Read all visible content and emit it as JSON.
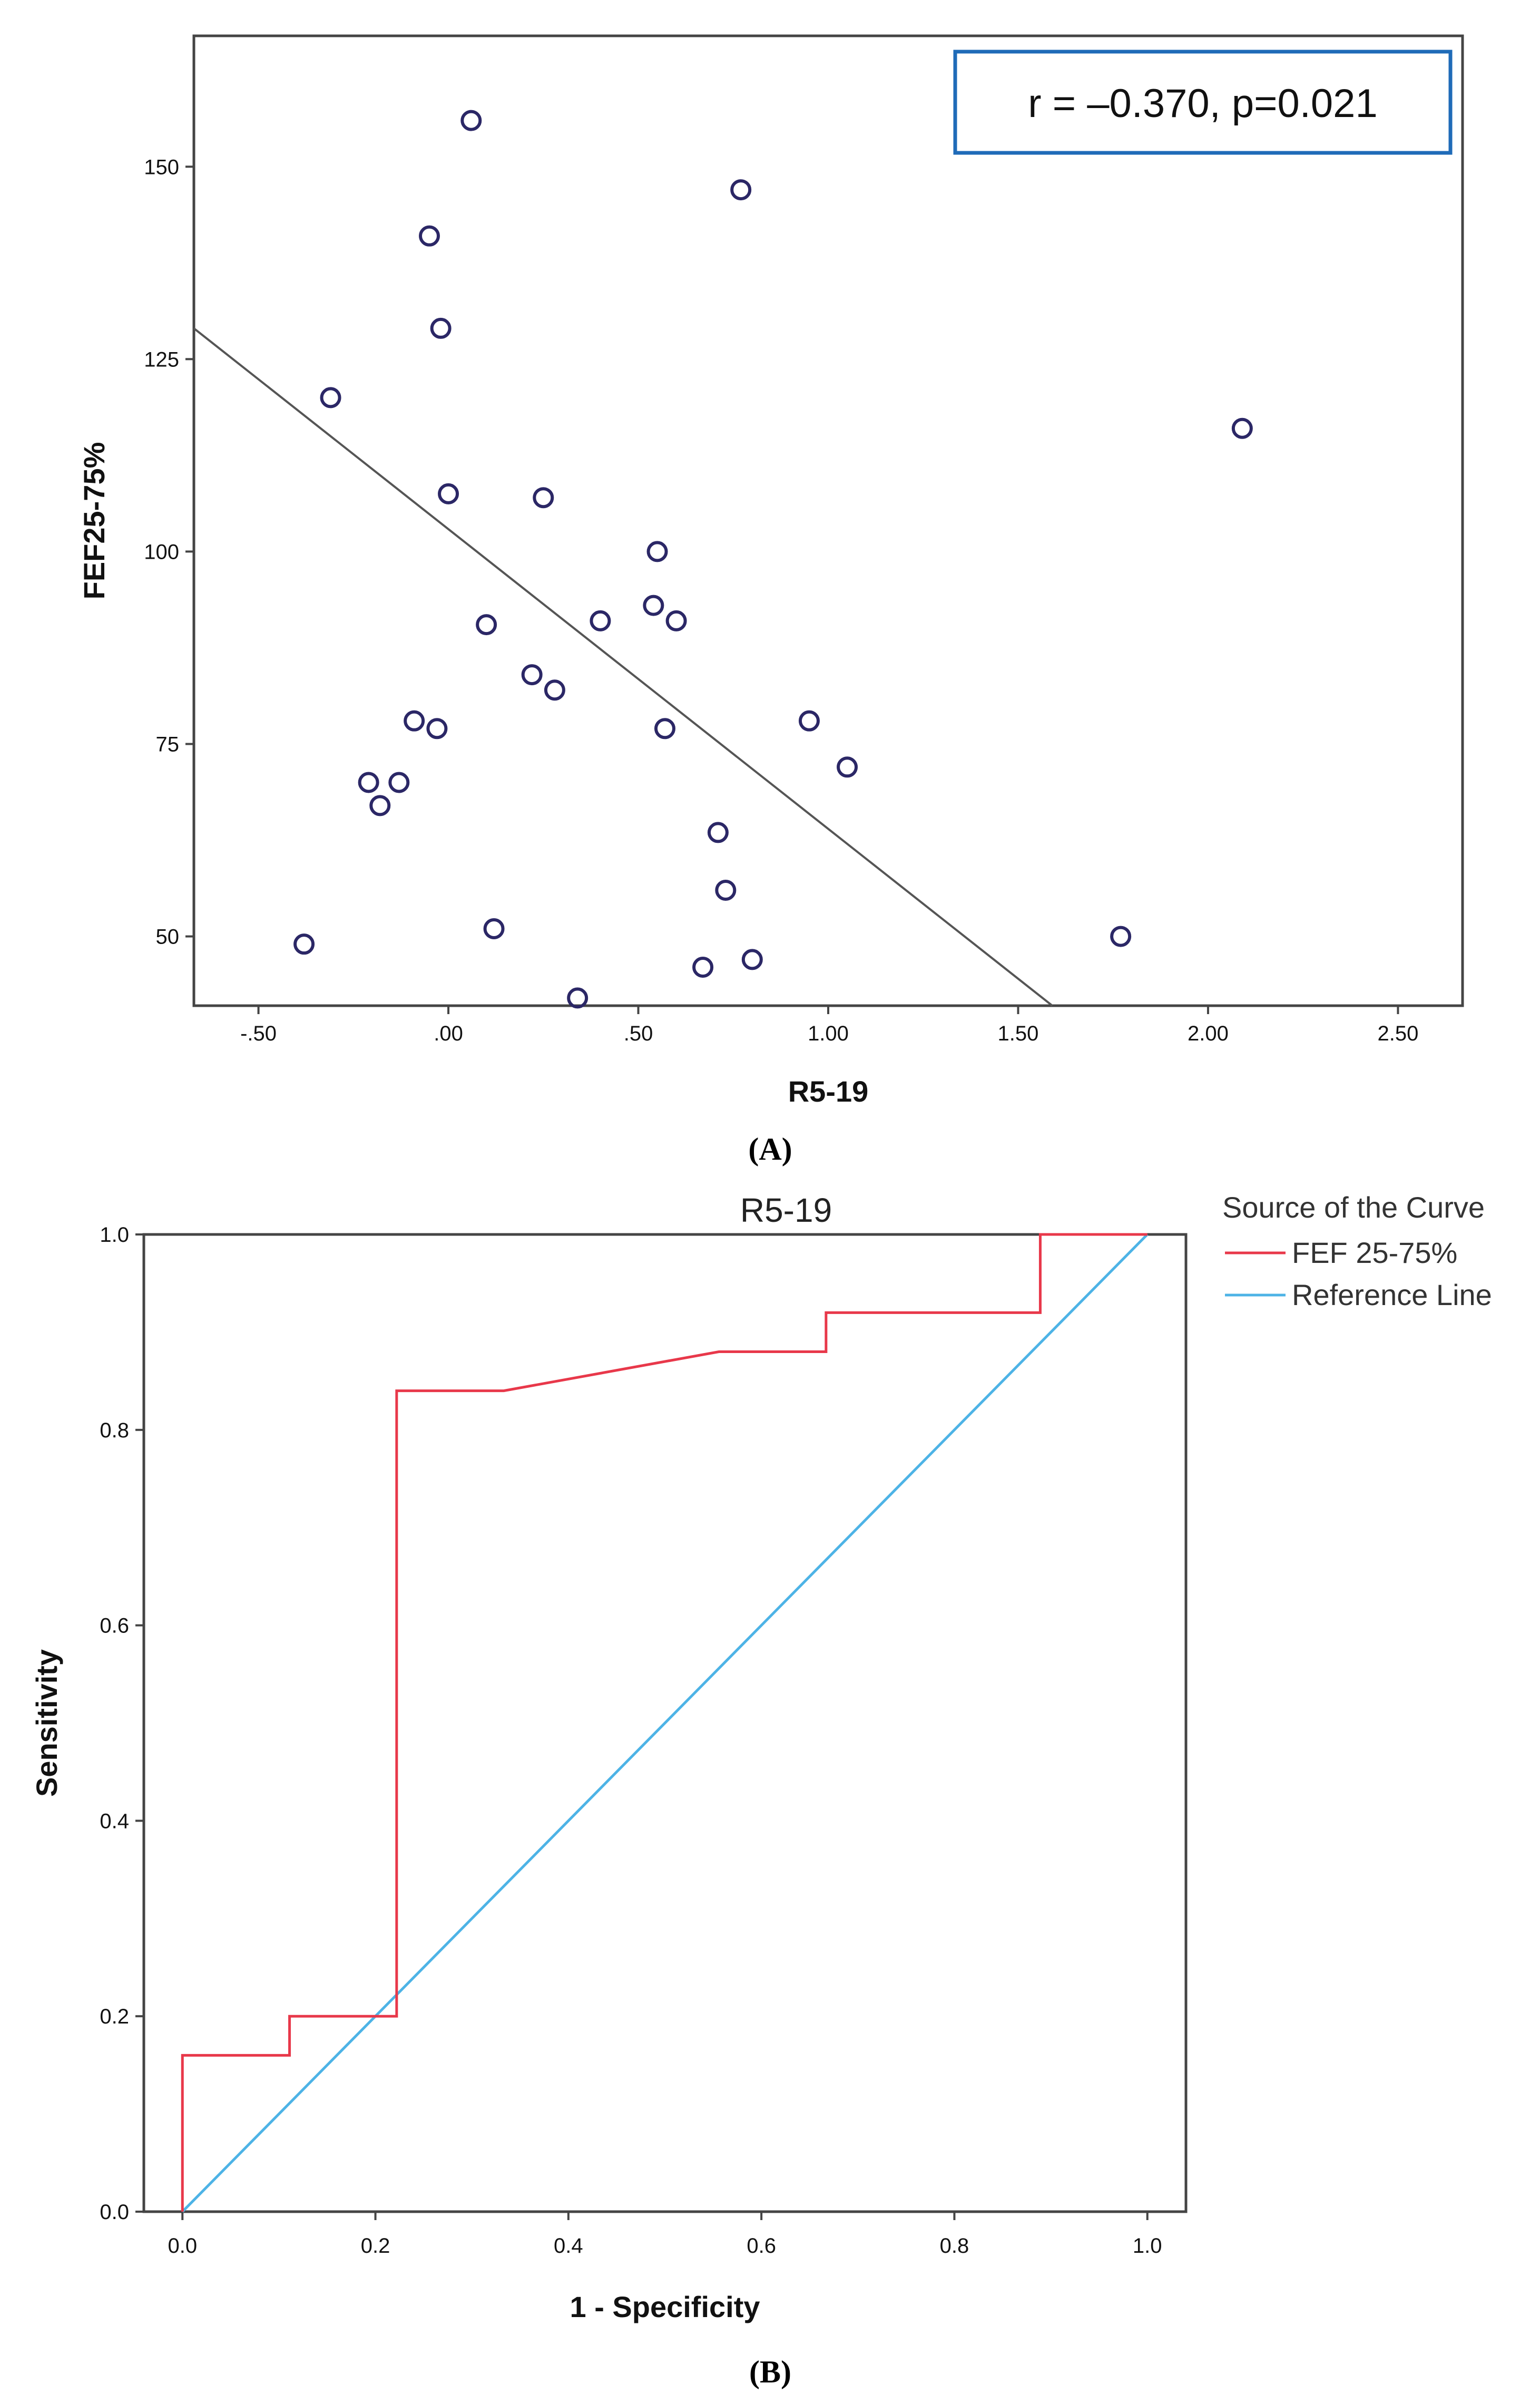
{
  "colors": {
    "frame": "#444444",
    "point_stroke": "#2b2766",
    "fit_line": "#555555",
    "annotation_border": "#1f6bb8",
    "roc_curve": "#e8384a",
    "reference_line": "#4db3e6"
  },
  "chart_data": [
    {
      "type": "scatter",
      "panel_label": "(A)",
      "xlabel": "R5-19",
      "ylabel": "FEF25-75%",
      "xlim": [
        -0.67,
        2.67
      ],
      "ylim": [
        41,
        167
      ],
      "x_ticks": [
        -0.5,
        0.0,
        0.5,
        1.0,
        1.5,
        2.0,
        2.5
      ],
      "x_tick_labels": [
        "-.50",
        ".00",
        ".50",
        "1.00",
        "1.50",
        "2.00",
        "2.50"
      ],
      "y_ticks": [
        50,
        75,
        100,
        125,
        150
      ],
      "y_tick_labels": [
        "50",
        "75",
        "100",
        "125",
        "150"
      ],
      "annotation": "r  =  –0.370, p=0.021",
      "points": [
        {
          "x": 0.06,
          "y": 156
        },
        {
          "x": 0.77,
          "y": 147
        },
        {
          "x": -0.05,
          "y": 141
        },
        {
          "x": -0.02,
          "y": 129
        },
        {
          "x": -0.31,
          "y": 120
        },
        {
          "x": 2.09,
          "y": 116
        },
        {
          "x": 0.0,
          "y": 107.5
        },
        {
          "x": 0.25,
          "y": 107
        },
        {
          "x": 0.55,
          "y": 100
        },
        {
          "x": 0.54,
          "y": 93
        },
        {
          "x": 0.4,
          "y": 91
        },
        {
          "x": 0.6,
          "y": 91
        },
        {
          "x": 0.1,
          "y": 90.5
        },
        {
          "x": 0.22,
          "y": 84
        },
        {
          "x": 0.28,
          "y": 82
        },
        {
          "x": -0.09,
          "y": 78
        },
        {
          "x": 0.95,
          "y": 78
        },
        {
          "x": -0.03,
          "y": 77
        },
        {
          "x": 0.57,
          "y": 77
        },
        {
          "x": 1.05,
          "y": 72
        },
        {
          "x": -0.21,
          "y": 70
        },
        {
          "x": -0.13,
          "y": 70
        },
        {
          "x": -0.18,
          "y": 67
        },
        {
          "x": 0.71,
          "y": 63.5
        },
        {
          "x": 0.73,
          "y": 56
        },
        {
          "x": 0.12,
          "y": 51
        },
        {
          "x": 1.77,
          "y": 50
        },
        {
          "x": -0.38,
          "y": 49
        },
        {
          "x": 0.8,
          "y": 47
        },
        {
          "x": 0.67,
          "y": 46
        },
        {
          "x": 0.34,
          "y": 42
        }
      ],
      "fit_line": {
        "x": [
          -0.67,
          1.59
        ],
        "y": [
          129,
          41
        ]
      }
    },
    {
      "type": "line",
      "panel_label": "(B)",
      "title": "R5-19",
      "xlabel": "1 - Specificity",
      "ylabel": "Sensitivity",
      "xlim": [
        -0.04,
        1.04
      ],
      "ylim": [
        0.0,
        1.0
      ],
      "x_ticks": [
        0.0,
        0.2,
        0.4,
        0.6,
        0.8,
        1.0
      ],
      "x_tick_labels": [
        "0.0",
        "0.2",
        "0.4",
        "0.6",
        "0.8",
        "1.0"
      ],
      "y_ticks": [
        0.0,
        0.2,
        0.4,
        0.6,
        0.8,
        1.0
      ],
      "y_tick_labels": [
        "0.0",
        "0.2",
        "0.4",
        "0.6",
        "0.8",
        "1.0"
      ],
      "legend_title": "Source of the Curve",
      "legend_position": "outside top-right",
      "series": [
        {
          "name": "FEF 25-75%",
          "x": [
            0.0,
            0.0,
            0.111,
            0.111,
            0.222,
            0.222,
            0.333,
            0.556,
            0.667,
            0.667,
            0.889,
            0.889,
            1.0
          ],
          "y": [
            0.0,
            0.16,
            0.16,
            0.2,
            0.2,
            0.84,
            0.84,
            0.88,
            0.88,
            0.92,
            0.92,
            1.0,
            1.0
          ]
        },
        {
          "name": "Reference Line",
          "x": [
            0.0,
            1.0
          ],
          "y": [
            0.0,
            1.0
          ]
        }
      ]
    }
  ]
}
